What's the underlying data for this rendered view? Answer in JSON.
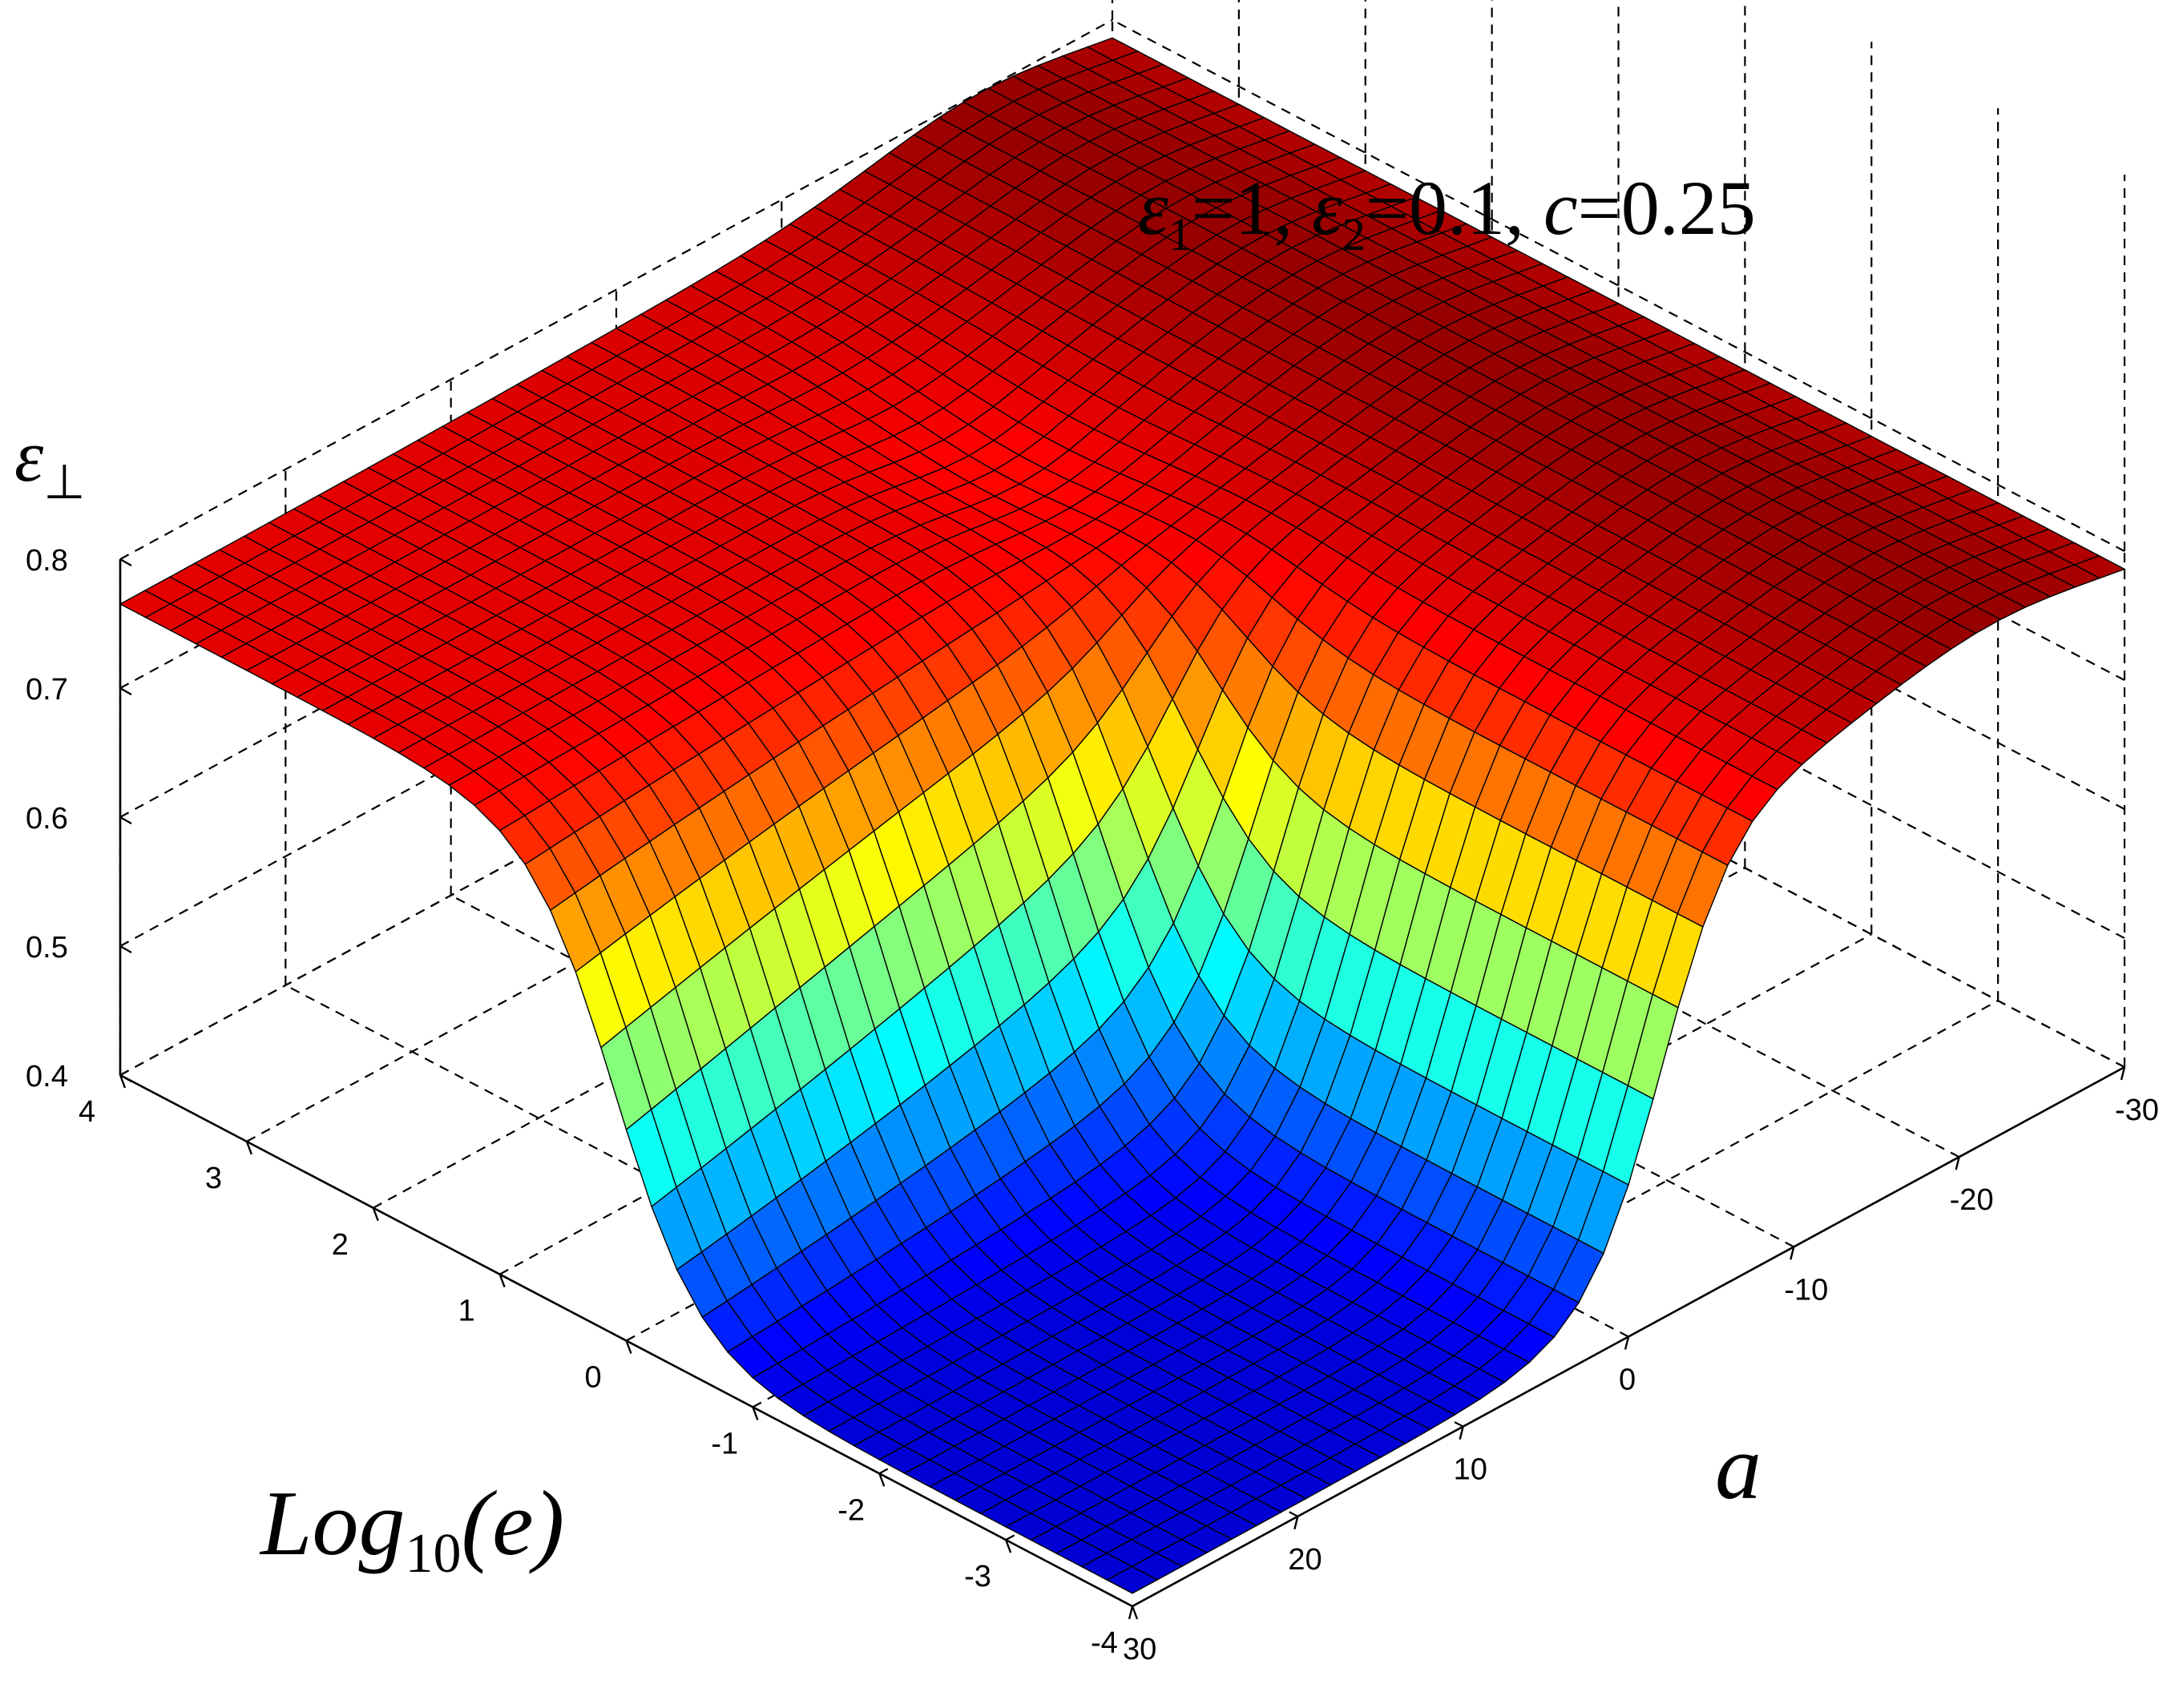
{
  "chart_data": {
    "type": "surface",
    "title_parts": {
      "eps1_symbol": "ε",
      "eps1_sub": "1",
      "eps1_value": "=1, ",
      "eps2_symbol": "ε",
      "eps2_sub": "2",
      "eps2_value": "=0.1, ",
      "c_symbol": "c",
      "c_value": "=0.25"
    },
    "zlabel": {
      "symbol": "ε",
      "sub": "⊥"
    },
    "xlabel": {
      "text": "Log",
      "sub": "10",
      "tail": "(e)"
    },
    "ylabel": "a",
    "x_axis": {
      "name": "Log10(e)",
      "range": [
        -4,
        4
      ],
      "ticks": [
        "4",
        "3",
        "2",
        "1",
        "0",
        "-1",
        "-2",
        "-3",
        "-4"
      ]
    },
    "y_axis": {
      "name": "a",
      "range": [
        -30,
        30
      ],
      "ticks": [
        "30",
        "20",
        "10",
        "0",
        "-10",
        "-20",
        "-30"
      ]
    },
    "z_axis": {
      "range": [
        0.4,
        0.8
      ],
      "ticks": [
        "0.4",
        "0.5",
        "0.6",
        "0.7",
        "0.8"
      ]
    },
    "surface_samples": [
      {
        "log10e": -4,
        "a": 30,
        "value": 0.41
      },
      {
        "log10e": -4,
        "a": 0,
        "value": 0.42
      },
      {
        "log10e": -2,
        "a": 5,
        "value": 0.44
      },
      {
        "log10e": 0,
        "a": 0,
        "value": 0.62
      },
      {
        "log10e": 1,
        "a": 0,
        "value": 0.76
      },
      {
        "log10e": 4,
        "a": 30,
        "value": 0.76
      },
      {
        "log10e": 4,
        "a": -30,
        "value": 0.79
      },
      {
        "log10e": -4,
        "a": -30,
        "value": 0.76
      },
      {
        "log10e": -2,
        "a": -20,
        "value": 0.79
      },
      {
        "log10e": 0,
        "a": -20,
        "value": 0.76
      }
    ],
    "colormap": "jet",
    "grid": true
  }
}
